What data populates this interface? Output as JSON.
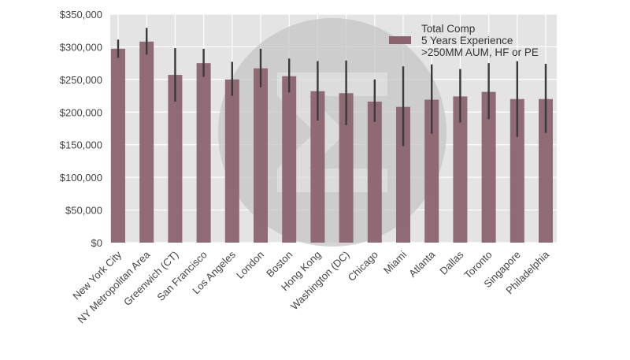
{
  "chart_data": {
    "type": "bar",
    "title": "",
    "xlabel": "",
    "ylabel": "",
    "ylim": [
      0,
      350000
    ],
    "yticks": [
      0,
      50000,
      100000,
      150000,
      200000,
      250000,
      300000,
      350000
    ],
    "ytick_labels": [
      "$0",
      "$50,000",
      "$100,000",
      "$150,000",
      "$200,000",
      "$250,000",
      "$300,000",
      "$350,000"
    ],
    "grid": true,
    "legend_position": "top-right",
    "categories": [
      "New York City",
      "NY Metropolitan Area",
      "Greenwich (CT)",
      "San Francisco",
      "Los Angeles",
      "London",
      "Boston",
      "Hong Kong",
      "Washington (DC)",
      "Chicago",
      "Miami",
      "Atlanta",
      "Dallas",
      "Toronto",
      "Singapore",
      "Philadelphia"
    ],
    "series": [
      {
        "name": "Total Comp\n5 Years Experience\n>250MM AUM, HF or PE",
        "legend_lines": [
          "Total Comp",
          "5 Years Experience",
          ">250MM AUM, HF or PE"
        ],
        "color": "#8b6470",
        "values": [
          297000,
          308000,
          257000,
          275000,
          250000,
          267000,
          255000,
          232000,
          229000,
          216000,
          208000,
          219000,
          224000,
          231000,
          220000,
          220000
        ],
        "error_low": [
          283000,
          288000,
          216000,
          254000,
          225000,
          238000,
          230000,
          187000,
          180000,
          185000,
          148000,
          167000,
          184000,
          189000,
          162000,
          168000
        ],
        "error_high": [
          311000,
          329000,
          298000,
          297000,
          277000,
          297000,
          282000,
          278000,
          279000,
          250000,
          270000,
          273000,
          266000,
          275000,
          278000,
          274000
        ]
      }
    ],
    "colors": {
      "plot_bg": "#e4e4e4",
      "grid": "#ffffff",
      "errorbar": "#3a3a3a",
      "watermark": "#c9c9c9"
    }
  }
}
